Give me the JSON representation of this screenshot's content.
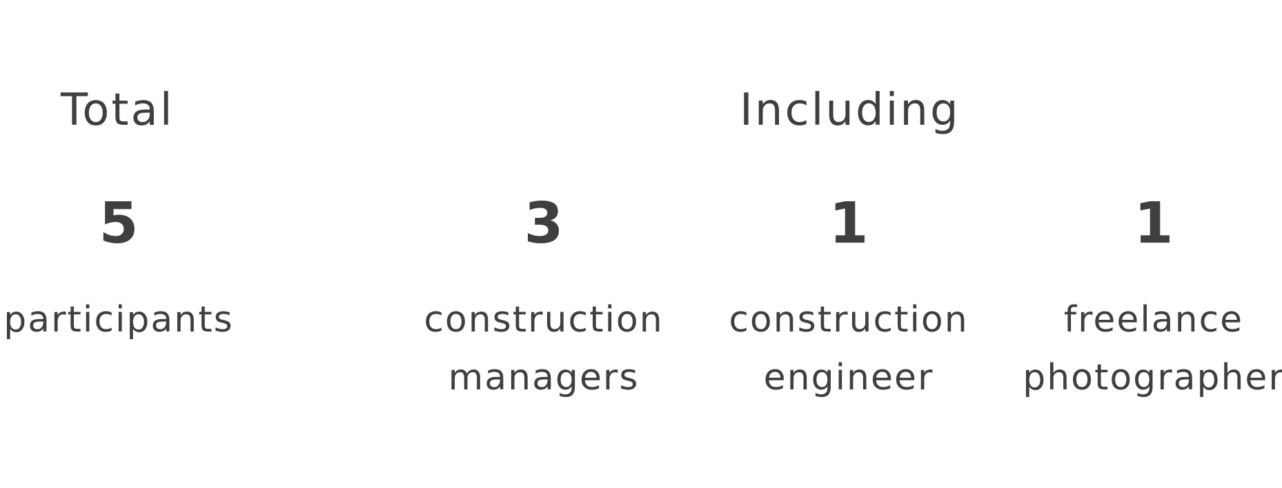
{
  "headings": {
    "total": "Total",
    "including": "Including"
  },
  "stats": [
    {
      "value": "5",
      "label": "participants"
    },
    {
      "value": "3",
      "label": "construction\nmanagers"
    },
    {
      "value": "1",
      "label": "construction\nengineer"
    },
    {
      "value": "1",
      "label": "freelance\nphotographer"
    }
  ],
  "colors": {
    "text": "#3f3f3f",
    "background": "#ffffff"
  }
}
